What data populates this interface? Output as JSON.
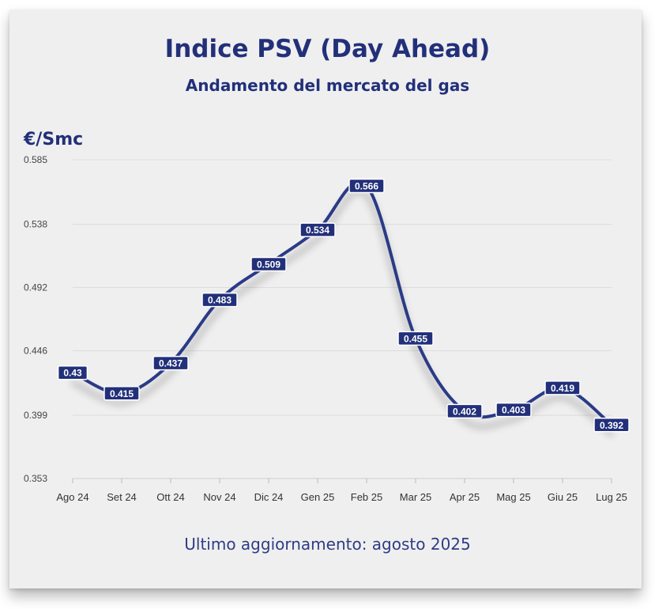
{
  "header": {
    "title": "Indice PSV (Day Ahead)",
    "subtitle": "Andamento del mercato del gas",
    "unit": "€/Smc"
  },
  "footer": {
    "text": "Ultimo aggiornamento: agosto 2025"
  },
  "colors": {
    "line": "#2a3a86",
    "label_bg": "#22307a",
    "text_accent": "#22307a",
    "background": "#efefef"
  },
  "chart_data": {
    "type": "line",
    "title": "Indice PSV (Day Ahead)",
    "subtitle": "Andamento del mercato del gas",
    "ylabel": "€/Smc",
    "xlabel": "",
    "categories": [
      "Ago 24",
      "Set 24",
      "Ott 24",
      "Nov 24",
      "Dic 24",
      "Gen 25",
      "Feb 25",
      "Mar 25",
      "Apr 25",
      "Mag 25",
      "Giu 25",
      "Lug 25"
    ],
    "values": [
      0.43,
      0.415,
      0.437,
      0.483,
      0.509,
      0.534,
      0.566,
      0.455,
      0.402,
      0.403,
      0.419,
      0.392
    ],
    "data_labels": [
      "0.43",
      "0.415",
      "0.437",
      "0.483",
      "0.509",
      "0.534",
      "0.566",
      "0.455",
      "0.402",
      "0.403",
      "0.419",
      "0.392"
    ],
    "yticks": [
      0.353,
      0.399,
      0.446,
      0.492,
      0.538,
      0.585
    ],
    "ytick_labels": [
      "0.353",
      "0.399",
      "0.446",
      "0.492",
      "0.538",
      "0.585"
    ],
    "ylim": [
      0.353,
      0.585
    ],
    "grid": true,
    "legend": "none",
    "smooth": true
  }
}
